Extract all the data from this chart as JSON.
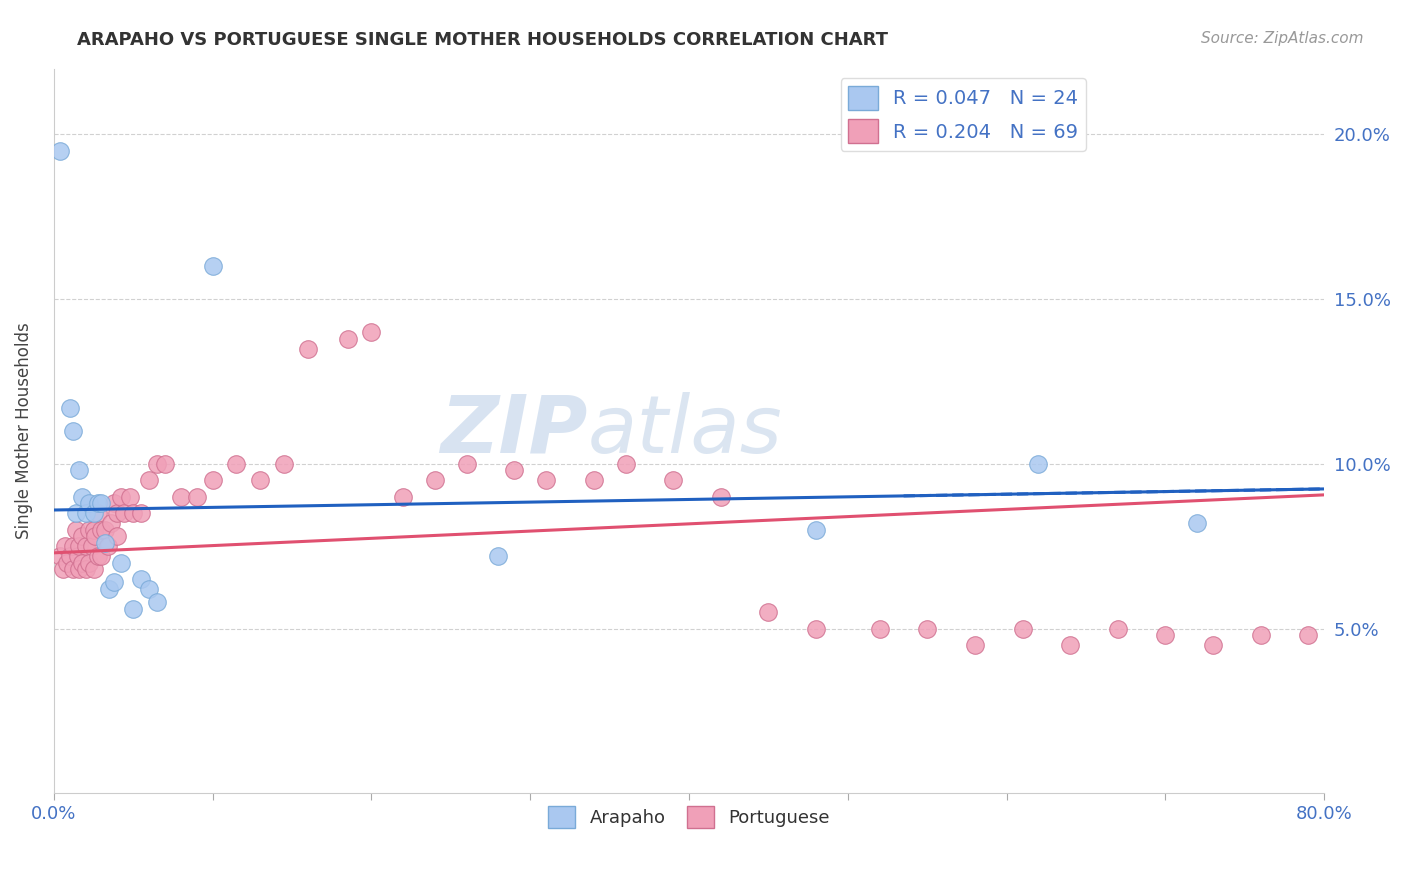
{
  "title": "ARAPAHO VS PORTUGUESE SINGLE MOTHER HOUSEHOLDS CORRELATION CHART",
  "source": "Source: ZipAtlas.com",
  "ylabel": "Single Mother Households",
  "xlim": [
    0.0,
    0.8
  ],
  "ylim": [
    0.0,
    0.22
  ],
  "arapaho_color": "#aac8f0",
  "arapaho_edge": "#7aaad8",
  "portuguese_color": "#f0a0b8",
  "portuguese_edge": "#d07090",
  "trendline_blue": "#2060c0",
  "trendline_pink": "#e05070",
  "arapaho_R": 0.047,
  "arapaho_N": 24,
  "portuguese_R": 0.204,
  "portuguese_N": 69,
  "watermark_color": "#c8d8ec",
  "grid_color": "#cccccc",
  "arapaho_x": [
    0.004,
    0.01,
    0.012,
    0.014,
    0.016,
    0.018,
    0.02,
    0.022,
    0.025,
    0.028,
    0.03,
    0.032,
    0.035,
    0.038,
    0.042,
    0.05,
    0.055,
    0.06,
    0.065,
    0.1,
    0.28,
    0.48,
    0.62,
    0.72
  ],
  "arapaho_y": [
    0.195,
    0.117,
    0.11,
    0.085,
    0.098,
    0.09,
    0.085,
    0.088,
    0.085,
    0.088,
    0.088,
    0.076,
    0.062,
    0.064,
    0.07,
    0.056,
    0.065,
    0.062,
    0.058,
    0.16,
    0.072,
    0.08,
    0.1,
    0.082
  ],
  "portuguese_x": [
    0.004,
    0.006,
    0.007,
    0.008,
    0.01,
    0.012,
    0.012,
    0.014,
    0.015,
    0.016,
    0.016,
    0.018,
    0.018,
    0.02,
    0.02,
    0.022,
    0.022,
    0.024,
    0.025,
    0.025,
    0.026,
    0.028,
    0.028,
    0.03,
    0.03,
    0.032,
    0.034,
    0.036,
    0.038,
    0.04,
    0.04,
    0.042,
    0.044,
    0.048,
    0.05,
    0.055,
    0.06,
    0.065,
    0.07,
    0.08,
    0.09,
    0.1,
    0.115,
    0.13,
    0.145,
    0.16,
    0.185,
    0.2,
    0.22,
    0.24,
    0.26,
    0.29,
    0.31,
    0.34,
    0.36,
    0.39,
    0.42,
    0.45,
    0.48,
    0.52,
    0.55,
    0.58,
    0.61,
    0.64,
    0.67,
    0.7,
    0.73,
    0.76,
    0.79
  ],
  "portuguese_y": [
    0.072,
    0.068,
    0.075,
    0.07,
    0.072,
    0.075,
    0.068,
    0.08,
    0.072,
    0.075,
    0.068,
    0.078,
    0.07,
    0.075,
    0.068,
    0.08,
    0.07,
    0.075,
    0.08,
    0.068,
    0.078,
    0.085,
    0.072,
    0.08,
    0.072,
    0.08,
    0.075,
    0.082,
    0.088,
    0.085,
    0.078,
    0.09,
    0.085,
    0.09,
    0.085,
    0.085,
    0.095,
    0.1,
    0.1,
    0.09,
    0.09,
    0.095,
    0.1,
    0.095,
    0.1,
    0.135,
    0.138,
    0.14,
    0.09,
    0.095,
    0.1,
    0.098,
    0.095,
    0.095,
    0.1,
    0.095,
    0.09,
    0.055,
    0.05,
    0.05,
    0.05,
    0.045,
    0.05,
    0.045,
    0.05,
    0.048,
    0.045,
    0.048,
    0.048
  ]
}
